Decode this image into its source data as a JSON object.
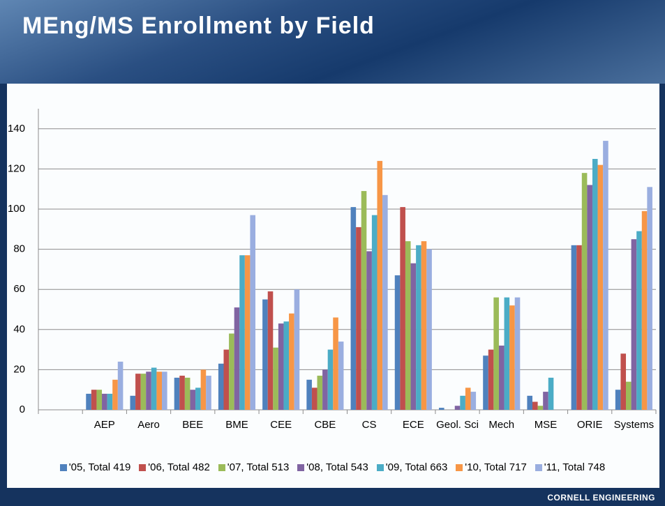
{
  "chart_data": {
    "type": "bar",
    "title": "MEng/MS Enrollment by Field",
    "categories": [
      null,
      "AEP",
      "Aero",
      "BEE",
      "BME",
      "CEE",
      "CBE",
      "CS",
      "ECE",
      "Geol. Sci",
      "Mech",
      "MSE",
      "ORIE",
      "Systems"
    ],
    "series": [
      {
        "name": "'05, Total 419",
        "color": "#4f81bd",
        "values": [
          null,
          8,
          7,
          16,
          23,
          55,
          15,
          101,
          67,
          1,
          27,
          7,
          82,
          10
        ]
      },
      {
        "name": "'06, Total 482",
        "color": "#c0504d",
        "values": [
          null,
          10,
          18,
          17,
          30,
          59,
          11,
          91,
          101,
          0,
          30,
          4,
          82,
          28
        ]
      },
      {
        "name": "'07, Total 513",
        "color": "#9bbb59",
        "values": [
          null,
          10,
          18,
          16,
          38,
          31,
          17,
          109,
          84,
          0,
          56,
          2,
          118,
          14
        ]
      },
      {
        "name": "'08, Total 543",
        "color": "#8064a2",
        "values": [
          null,
          8,
          19,
          10,
          51,
          43,
          20,
          79,
          73,
          2,
          32,
          9,
          112,
          85
        ]
      },
      {
        "name": "'09, Total 663",
        "color": "#4bacc6",
        "values": [
          null,
          8,
          21,
          11,
          77,
          44,
          30,
          97,
          82,
          7,
          56,
          16,
          125,
          89
        ]
      },
      {
        "name": "'10, Total 717",
        "color": "#f79646",
        "values": [
          null,
          15,
          19,
          20,
          77,
          48,
          46,
          124,
          84,
          11,
          52,
          0,
          122,
          99
        ]
      },
      {
        "name": "'11, Total 748",
        "color": "#9aaee0",
        "values": [
          null,
          24,
          19,
          17,
          97,
          60,
          34,
          107,
          80,
          9,
          56,
          0,
          134,
          111
        ]
      }
    ],
    "ylim": [
      0,
      150
    ],
    "yticks": [
      0,
      20,
      40,
      60,
      80,
      100,
      120,
      140
    ],
    "grid": true,
    "legend": "bottom"
  },
  "footer": "CORNELL ENGINEERING"
}
